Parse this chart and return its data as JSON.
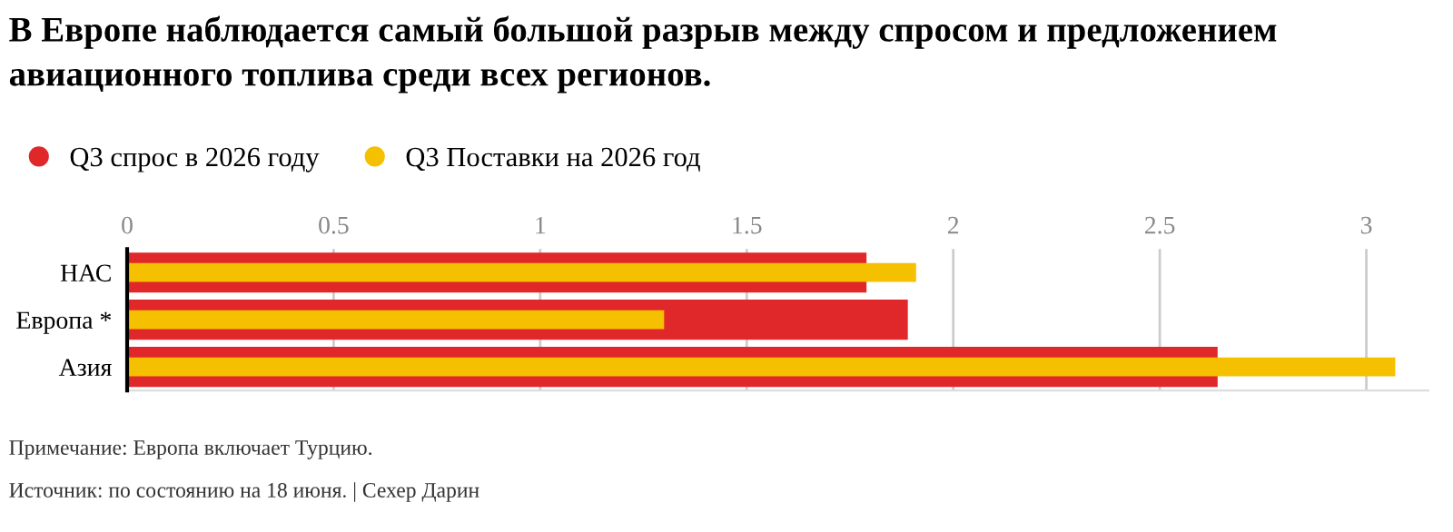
{
  "chart_data": {
    "type": "bar",
    "orientation": "horizontal",
    "title": "В Европе наблюдается самый большой разрыв между спросом и предложением авиационного топлива среди всех регионов.",
    "categories": [
      "НАС",
      "Европа *",
      "Азия"
    ],
    "series": [
      {
        "name": "Q3 спрос в 2026 году",
        "color": "#e0282a",
        "values": [
          1.79,
          1.89,
          2.64
        ]
      },
      {
        "name": "Q3 Поставки на 2026 год",
        "color": "#f5c000",
        "values": [
          1.91,
          1.3,
          3.07
        ]
      }
    ],
    "xlim": [
      0,
      3.15
    ],
    "xticks": [
      0,
      0.5,
      1,
      1.5,
      2,
      2.5,
      3
    ],
    "grid": "x",
    "legend": "top left",
    "annotations": [
      "Примечание: Европа включает Турцию.",
      "Источник: по состоянию на 18 июня. | Сехер Дарин"
    ]
  }
}
